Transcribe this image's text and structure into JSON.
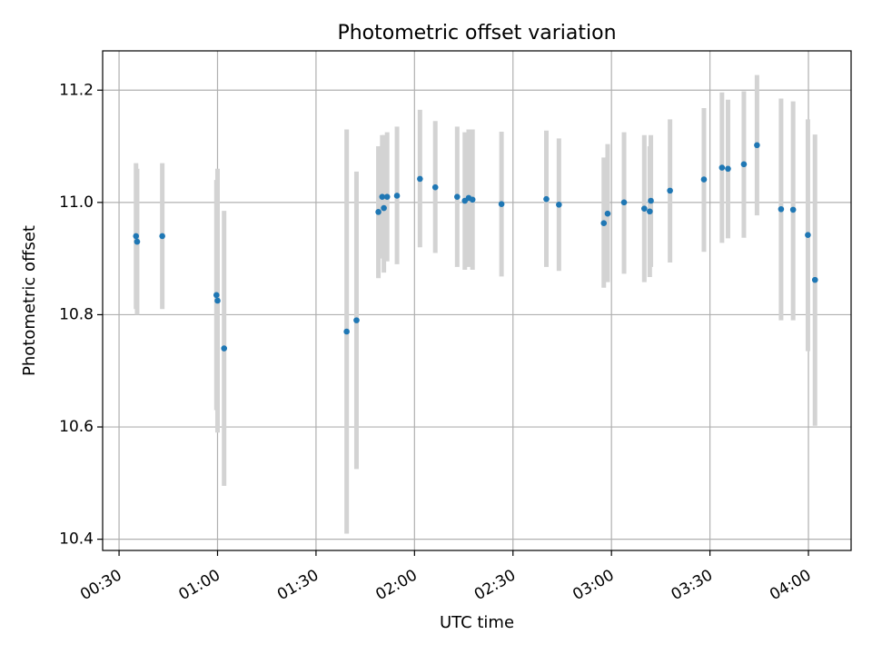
{
  "chart_data": {
    "type": "scatter",
    "title": "Photometric offset variation",
    "xlabel": "UTC time",
    "ylabel": "Photometric offset",
    "xlim": [
      "00:25",
      "04:13"
    ],
    "ylim": [
      10.38,
      11.27
    ],
    "xticks": [
      "00:30",
      "01:00",
      "01:30",
      "02:00",
      "02:30",
      "03:00",
      "03:30",
      "04:00"
    ],
    "yticks": [
      "10.4",
      "10.6",
      "10.8",
      "11.0",
      "11.2"
    ],
    "grid": true,
    "point_color": "#1f77b4",
    "errorbar_color": "#d3d3d3",
    "series": [
      {
        "points": [
          {
            "x": "00:35:10",
            "y": 10.94,
            "lo": 10.81,
            "hi": 11.07
          },
          {
            "x": "00:35:30",
            "y": 10.93,
            "lo": 10.8,
            "hi": 11.06
          },
          {
            "x": "00:43:10",
            "y": 10.94,
            "lo": 10.81,
            "hi": 11.07
          },
          {
            "x": "00:59:40",
            "y": 10.835,
            "lo": 10.63,
            "hi": 11.04
          },
          {
            "x": "01:00:00",
            "y": 10.825,
            "lo": 10.59,
            "hi": 11.06
          },
          {
            "x": "01:02:00",
            "y": 10.74,
            "lo": 10.495,
            "hi": 10.985
          },
          {
            "x": "01:39:20",
            "y": 10.77,
            "lo": 10.41,
            "hi": 11.13
          },
          {
            "x": "01:42:20",
            "y": 10.79,
            "lo": 10.525,
            "hi": 11.055
          },
          {
            "x": "01:49:00",
            "y": 10.983,
            "lo": 10.865,
            "hi": 11.1
          },
          {
            "x": "01:50:10",
            "y": 11.01,
            "lo": 10.9,
            "hi": 11.12
          },
          {
            "x": "01:50:40",
            "y": 10.99,
            "lo": 10.875,
            "hi": 11.12
          },
          {
            "x": "01:51:40",
            "y": 11.01,
            "lo": 10.895,
            "hi": 11.125
          },
          {
            "x": "01:54:40",
            "y": 11.012,
            "lo": 10.89,
            "hi": 11.135
          },
          {
            "x": "02:01:40",
            "y": 11.042,
            "lo": 10.92,
            "hi": 11.165
          },
          {
            "x": "02:06:20",
            "y": 11.027,
            "lo": 10.91,
            "hi": 11.145
          },
          {
            "x": "02:13:00",
            "y": 11.01,
            "lo": 10.885,
            "hi": 11.135
          },
          {
            "x": "02:15:20",
            "y": 11.003,
            "lo": 10.88,
            "hi": 11.125
          },
          {
            "x": "02:16:30",
            "y": 11.008,
            "lo": 10.885,
            "hi": 11.13
          },
          {
            "x": "02:17:40",
            "y": 11.005,
            "lo": 10.88,
            "hi": 11.13
          },
          {
            "x": "02:26:30",
            "y": 10.997,
            "lo": 10.868,
            "hi": 11.126
          },
          {
            "x": "02:40:10",
            "y": 11.006,
            "lo": 10.885,
            "hi": 11.128
          },
          {
            "x": "02:44:00",
            "y": 10.996,
            "lo": 10.878,
            "hi": 11.114
          },
          {
            "x": "02:57:40",
            "y": 10.963,
            "lo": 10.848,
            "hi": 11.08
          },
          {
            "x": "02:58:50",
            "y": 10.98,
            "lo": 10.858,
            "hi": 11.104
          },
          {
            "x": "03:03:50",
            "y": 11.0,
            "lo": 10.873,
            "hi": 11.125
          },
          {
            "x": "03:10:00",
            "y": 10.989,
            "lo": 10.858,
            "hi": 11.12
          },
          {
            "x": "03:11:40",
            "y": 10.984,
            "lo": 10.867,
            "hi": 11.1
          },
          {
            "x": "03:12:00",
            "y": 11.003,
            "lo": 10.885,
            "hi": 11.12
          },
          {
            "x": "03:17:50",
            "y": 11.021,
            "lo": 10.893,
            "hi": 11.148
          },
          {
            "x": "03:28:10",
            "y": 11.041,
            "lo": 10.912,
            "hi": 11.168
          },
          {
            "x": "03:33:40",
            "y": 11.062,
            "lo": 10.928,
            "hi": 11.196
          },
          {
            "x": "03:35:30",
            "y": 11.06,
            "lo": 10.936,
            "hi": 11.183
          },
          {
            "x": "03:40:20",
            "y": 11.068,
            "lo": 10.937,
            "hi": 11.198
          },
          {
            "x": "03:44:20",
            "y": 11.102,
            "lo": 10.977,
            "hi": 11.227
          },
          {
            "x": "03:51:40",
            "y": 10.988,
            "lo": 10.79,
            "hi": 11.185
          },
          {
            "x": "03:55:20",
            "y": 10.987,
            "lo": 10.79,
            "hi": 11.18
          },
          {
            "x": "03:59:50",
            "y": 10.942,
            "lo": 10.735,
            "hi": 11.148
          },
          {
            "x": "04:02:00",
            "y": 10.862,
            "lo": 10.602,
            "hi": 11.121
          }
        ]
      }
    ]
  }
}
